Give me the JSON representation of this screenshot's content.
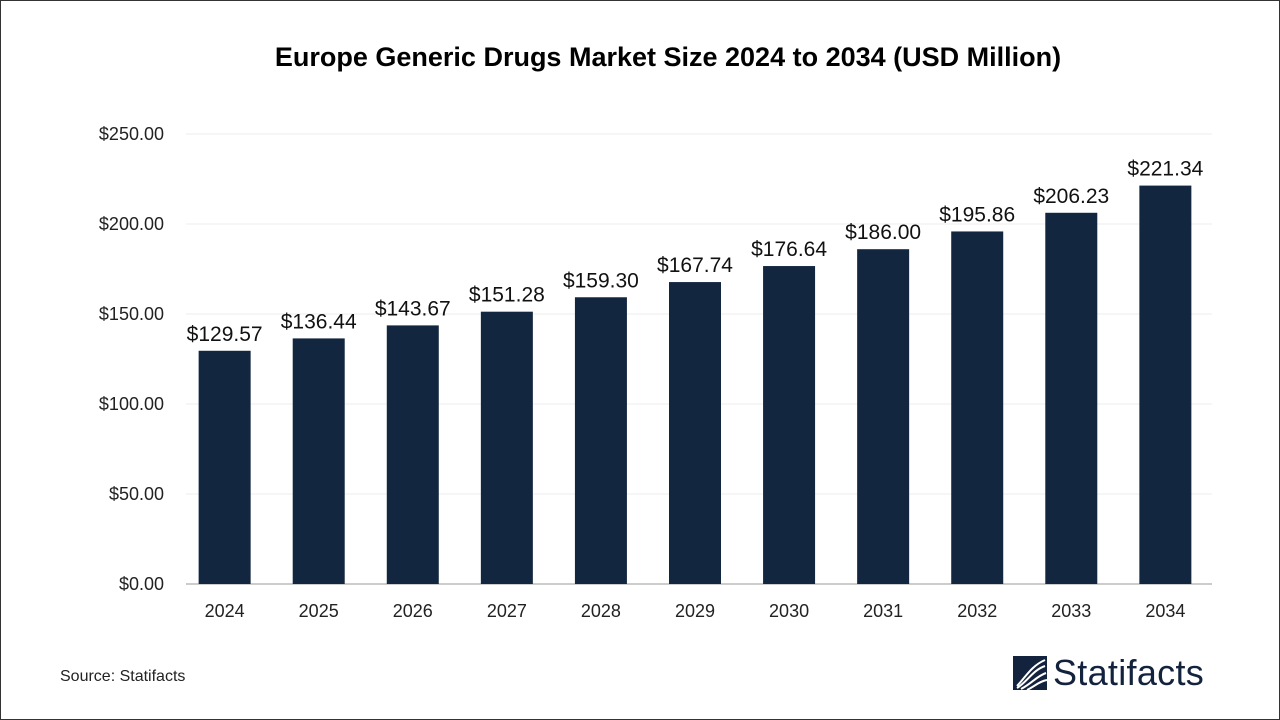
{
  "chart_data": {
    "type": "bar",
    "title": "Europe Generic Drugs Market Size 2024 to 2034  (USD Million)",
    "categories": [
      "2024",
      "2025",
      "2026",
      "2027",
      "2028",
      "2029",
      "2030",
      "2031",
      "2032",
      "2033",
      "2034"
    ],
    "values": [
      129.57,
      136.44,
      143.67,
      151.28,
      159.3,
      167.74,
      176.64,
      186.0,
      195.86,
      206.23,
      221.34
    ],
    "data_labels": [
      "$129.57",
      "$136.44",
      "$143.67",
      "$151.28",
      "$159.30",
      "$167.74",
      "$176.64",
      "$186.00",
      "$195.86",
      "$206.23",
      "$221.34"
    ],
    "yticks": [
      "$0.00",
      "$50.00",
      "$100.00",
      "$150.00",
      "$200.00",
      "$250.00"
    ],
    "ylim": [
      0,
      250
    ],
    "xlabel": "",
    "ylabel": "",
    "grid": true,
    "bar_color": "#12263f"
  },
  "source": "Source: Statifacts",
  "logo": {
    "text": "Statifacts",
    "color": "#13223d"
  }
}
